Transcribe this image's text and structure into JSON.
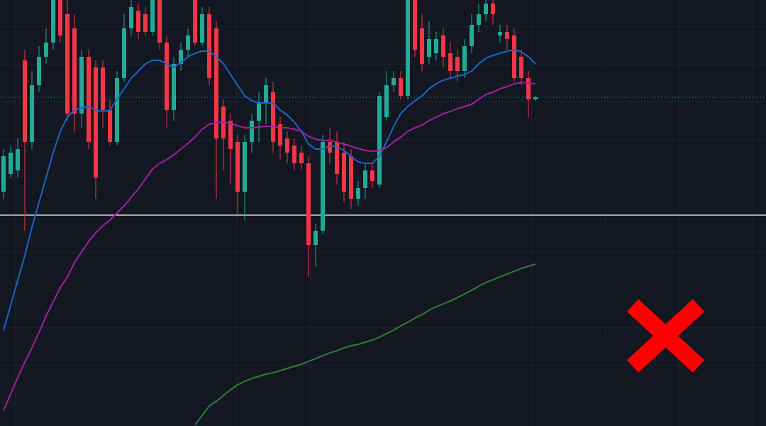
{
  "chart_data": {
    "type": "candlestick",
    "x": [
      0,
      1,
      2,
      3,
      4,
      5,
      6,
      7,
      8,
      9,
      10,
      11,
      12,
      13,
      14,
      15,
      16,
      17,
      18,
      19,
      20,
      21,
      22,
      23,
      24,
      25,
      26,
      27,
      28,
      29,
      30,
      31,
      32,
      33,
      34,
      35,
      36,
      37,
      38,
      39,
      40,
      41,
      42,
      43,
      44,
      45,
      46,
      47,
      48,
      49,
      50,
      51,
      52,
      53,
      54,
      55,
      56,
      57,
      58,
      59,
      60,
      61,
      62,
      63,
      64,
      65,
      66,
      67,
      68,
      69,
      70,
      71,
      72,
      73,
      74,
      75
    ],
    "open": [
      330,
      355,
      360,
      515,
      400,
      480,
      520,
      540,
      600,
      580,
      560,
      440,
      520,
      505,
      505,
      445,
      400,
      490,
      560,
      585,
      580,
      555,
      600,
      540,
      445,
      510,
      530,
      600,
      540,
      580,
      560,
      450,
      430,
      400,
      330,
      400,
      430,
      455,
      470,
      425,
      405,
      395,
      385,
      370,
      255,
      275,
      400,
      400,
      385,
      380,
      320,
      335,
      360,
      340,
      435,
      480,
      490,
      465,
      600,
      560,
      520,
      525,
      550,
      525,
      520,
      500,
      535,
      565,
      580,
      595,
      550,
      555,
      550,
      520,
      490,
      460
    ],
    "high": [
      390,
      395,
      405,
      530,
      500,
      535,
      560,
      610,
      610,
      610,
      580,
      530,
      530,
      515,
      515,
      460,
      500,
      580,
      600,
      595,
      590,
      610,
      610,
      550,
      520,
      540,
      560,
      610,
      590,
      590,
      570,
      460,
      440,
      410,
      410,
      440,
      470,
      490,
      485,
      435,
      415,
      405,
      395,
      380,
      285,
      410,
      420,
      415,
      400,
      390,
      345,
      370,
      370,
      470,
      500,
      500,
      500,
      610,
      610,
      580,
      570,
      555,
      560,
      540,
      530,
      545,
      580,
      595,
      605,
      600,
      565,
      565,
      560,
      530,
      500,
      465
    ],
    "low": [
      320,
      350,
      350,
      275,
      390,
      470,
      510,
      530,
      540,
      430,
      415,
      420,
      390,
      320,
      420,
      395,
      395,
      485,
      550,
      545,
      550,
      550,
      530,
      420,
      430,
      500,
      520,
      535,
      535,
      480,
      320,
      360,
      340,
      295,
      290,
      385,
      400,
      425,
      385,
      375,
      370,
      360,
      360,
      210,
      225,
      270,
      370,
      340,
      315,
      305,
      310,
      320,
      335,
      335,
      430,
      470,
      460,
      460,
      520,
      500,
      510,
      515,
      505,
      490,
      485,
      490,
      525,
      555,
      570,
      565,
      540,
      530,
      485,
      480,
      435,
      458
    ],
    "close": [
      380,
      385,
      390,
      400,
      480,
      520,
      540,
      600,
      550,
      440,
      440,
      520,
      400,
      350,
      445,
      400,
      490,
      560,
      590,
      555,
      555,
      600,
      540,
      445,
      510,
      530,
      550,
      540,
      580,
      490,
      405,
      405,
      390,
      330,
      400,
      430,
      455,
      480,
      400,
      395,
      385,
      370,
      370,
      255,
      275,
      400,
      385,
      355,
      330,
      320,
      335,
      360,
      345,
      465,
      480,
      490,
      465,
      600,
      530,
      510,
      545,
      545,
      520,
      500,
      500,
      535,
      565,
      580,
      595,
      580,
      555,
      545,
      490,
      490,
      460,
      463
    ],
    "up_color": "#22ab94",
    "down_color": "#f23645",
    "series": [
      {
        "color": "#1e63c6",
        "values": [
          135,
          170,
          205,
          240,
          280,
          315,
          350,
          385,
          415,
          435,
          445,
          448,
          450,
          445,
          443,
          445,
          460,
          475,
          490,
          500,
          510,
          515,
          515,
          510,
          505,
          512,
          520,
          525,
          528,
          528,
          520,
          510,
          495,
          480,
          465,
          458,
          455,
          455,
          455,
          445,
          438,
          428,
          415,
          397,
          390,
          390,
          395,
          393,
          388,
          380,
          372,
          370,
          370,
          380,
          400,
          422,
          440,
          450,
          458,
          465,
          475,
          482,
          487,
          490,
          493,
          495,
          500,
          510,
          518,
          522,
          525,
          528,
          530,
          527,
          520,
          510
        ]
      },
      {
        "color": "#a0229c",
        "values": [
          22,
          45,
          68,
          90,
          110,
          132,
          155,
          175,
          195,
          210,
          230,
          245,
          260,
          272,
          282,
          290,
          300,
          310,
          322,
          334,
          348,
          362,
          370,
          375,
          382,
          390,
          398,
          407,
          418,
          425,
          427,
          428,
          426,
          423,
          420,
          420,
          421,
          422,
          422,
          420,
          420,
          418,
          415,
          408,
          404,
          402,
          402,
          400,
          397,
          394,
          391,
          388,
          387,
          388,
          392,
          400,
          407,
          415,
          420,
          424,
          430,
          435,
          440,
          443,
          447,
          450,
          453,
          460,
          467,
          470,
          475,
          478,
          482,
          484,
          483,
          482
        ]
      },
      {
        "color": "#2e7d3a",
        "values": [
          null,
          null,
          null,
          null,
          null,
          null,
          null,
          null,
          null,
          null,
          null,
          null,
          null,
          null,
          null,
          null,
          null,
          null,
          null,
          null,
          null,
          null,
          null,
          null,
          null,
          null,
          null,
          2,
          15,
          28,
          35,
          43,
          51,
          58,
          63,
          67,
          70,
          73,
          75,
          78,
          81,
          84,
          87,
          91,
          95,
          99,
          103,
          106,
          110,
          113,
          115,
          118,
          121,
          125,
          130,
          135,
          141,
          146,
          152,
          157,
          163,
          168,
          172,
          176,
          181,
          186,
          191,
          197,
          202,
          206,
          210,
          214,
          218,
          222,
          225,
          228
        ]
      }
    ],
    "hlines": [
      {
        "value": 297,
        "color": "#d1d4dc",
        "style": "solid"
      },
      {
        "value": 463,
        "color": "#22ab94",
        "style": "dotted"
      }
    ],
    "xlim": [
      -0.5,
      107.5
    ],
    "ylim": [
      0,
      600
    ],
    "grid": true
  }
}
